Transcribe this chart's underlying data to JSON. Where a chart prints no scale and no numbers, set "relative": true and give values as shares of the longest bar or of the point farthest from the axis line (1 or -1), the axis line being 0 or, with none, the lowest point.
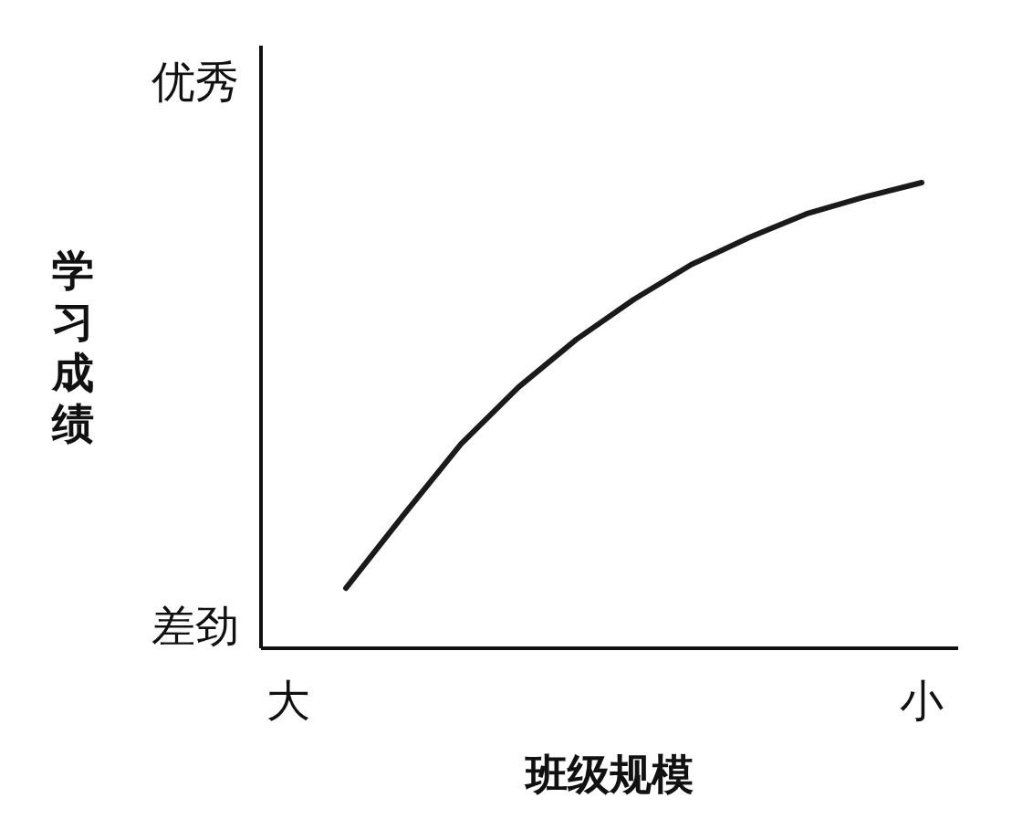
{
  "chart_data": {
    "type": "line",
    "relative": true,
    "xlabel": "班级规模",
    "ylabel": "学习成绩",
    "categories": [
      "大",
      null,
      null,
      null,
      null,
      null,
      null,
      null,
      null,
      null,
      null,
      "小"
    ],
    "color": "#1a1a1a",
    "values": [
      null,
      0.129,
      0.286,
      0.439,
      0.561,
      0.663,
      0.749,
      0.824,
      0.882,
      0.933,
      0.969,
      1.0
    ],
    "annotations": [
      "优秀",
      "差劲"
    ]
  }
}
